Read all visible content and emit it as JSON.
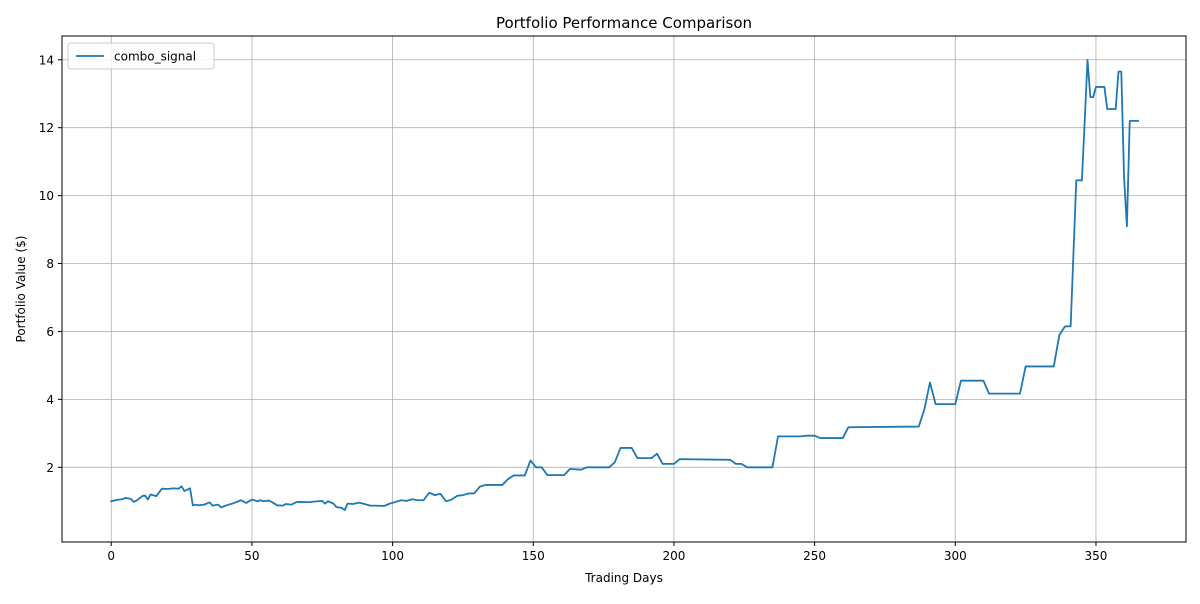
{
  "chart_data": {
    "type": "line",
    "title": "Portfolio Performance Comparison",
    "xlabel": "Trading Days",
    "ylabel": "Portfolio Value ($)",
    "xlim": [
      -17.5,
      382
    ],
    "ylim": [
      -0.2,
      14.7
    ],
    "xticks": [
      0,
      50,
      100,
      150,
      200,
      250,
      300,
      350
    ],
    "yticks": [
      2,
      4,
      6,
      8,
      10,
      12,
      14
    ],
    "grid": true,
    "legend_position": "top-left",
    "colors": {
      "series": "#1f77b4",
      "grid": "#b0b0b0",
      "axes": "#000000"
    },
    "series": [
      {
        "name": "combo_signal",
        "points": [
          [
            0,
            1.0
          ],
          [
            2,
            1.04
          ],
          [
            4,
            1.06
          ],
          [
            5,
            1.1
          ],
          [
            7,
            1.07
          ],
          [
            8,
            0.98
          ],
          [
            9,
            1.02
          ],
          [
            11,
            1.15
          ],
          [
            12,
            1.17
          ],
          [
            13,
            1.05
          ],
          [
            14,
            1.2
          ],
          [
            16,
            1.15
          ],
          [
            18,
            1.37
          ],
          [
            20,
            1.36
          ],
          [
            22,
            1.38
          ],
          [
            24,
            1.37
          ],
          [
            25,
            1.44
          ],
          [
            26,
            1.3
          ],
          [
            28,
            1.38
          ],
          [
            29,
            0.88
          ],
          [
            30,
            0.9
          ],
          [
            31,
            0.88
          ],
          [
            33,
            0.9
          ],
          [
            35,
            0.97
          ],
          [
            36,
            0.87
          ],
          [
            38,
            0.9
          ],
          [
            39,
            0.82
          ],
          [
            41,
            0.88
          ],
          [
            43,
            0.93
          ],
          [
            45,
            0.99
          ],
          [
            46,
            1.03
          ],
          [
            48,
            0.95
          ],
          [
            50,
            1.05
          ],
          [
            52,
            1.0
          ],
          [
            53,
            1.03
          ],
          [
            54,
            1.0
          ],
          [
            56,
            1.02
          ],
          [
            57,
            0.98
          ],
          [
            59,
            0.88
          ],
          [
            61,
            0.87
          ],
          [
            62,
            0.92
          ],
          [
            64,
            0.9
          ],
          [
            66,
            0.98
          ],
          [
            68,
            0.98
          ],
          [
            70,
            0.97
          ],
          [
            72,
            0.99
          ],
          [
            75,
            1.01
          ],
          [
            76,
            0.93
          ],
          [
            77,
            1.0
          ],
          [
            79,
            0.93
          ],
          [
            80,
            0.83
          ],
          [
            82,
            0.8
          ],
          [
            83,
            0.74
          ],
          [
            84,
            0.93
          ],
          [
            86,
            0.92
          ],
          [
            88,
            0.96
          ],
          [
            90,
            0.92
          ],
          [
            92,
            0.87
          ],
          [
            94,
            0.87
          ],
          [
            97,
            0.86
          ],
          [
            99,
            0.93
          ],
          [
            101,
            0.98
          ],
          [
            103,
            1.03
          ],
          [
            105,
            1.01
          ],
          [
            107,
            1.06
          ],
          [
            109,
            1.03
          ],
          [
            111,
            1.03
          ],
          [
            113,
            1.25
          ],
          [
            115,
            1.18
          ],
          [
            117,
            1.22
          ],
          [
            119,
            1.0
          ],
          [
            121,
            1.05
          ],
          [
            123,
            1.16
          ],
          [
            125,
            1.18
          ],
          [
            127,
            1.23
          ],
          [
            129,
            1.23
          ],
          [
            131,
            1.43
          ],
          [
            133,
            1.48
          ],
          [
            135,
            1.48
          ],
          [
            139,
            1.48
          ],
          [
            141,
            1.65
          ],
          [
            143,
            1.76
          ],
          [
            147,
            1.76
          ],
          [
            149,
            2.2
          ],
          [
            151,
            2.0
          ],
          [
            153,
            2.0
          ],
          [
            155,
            1.77
          ],
          [
            161,
            1.77
          ],
          [
            163,
            1.95
          ],
          [
            167,
            1.93
          ],
          [
            169,
            2.0
          ],
          [
            177,
            2.0
          ],
          [
            179,
            2.15
          ],
          [
            181,
            2.57
          ],
          [
            185,
            2.57
          ],
          [
            187,
            2.27
          ],
          [
            192,
            2.27
          ],
          [
            194,
            2.4
          ],
          [
            196,
            2.1
          ],
          [
            200,
            2.1
          ],
          [
            202,
            2.24
          ],
          [
            220,
            2.22
          ],
          [
            222,
            2.1
          ],
          [
            224,
            2.1
          ],
          [
            226,
            2.0
          ],
          [
            235,
            2.0
          ],
          [
            237,
            2.91
          ],
          [
            245,
            2.91
          ],
          [
            247,
            2.93
          ],
          [
            250,
            2.93
          ],
          [
            252,
            2.86
          ],
          [
            260,
            2.86
          ],
          [
            262,
            3.18
          ],
          [
            287,
            3.2
          ],
          [
            289,
            3.7
          ],
          [
            291,
            4.5
          ],
          [
            293,
            3.86
          ],
          [
            300,
            3.86
          ],
          [
            302,
            4.55
          ],
          [
            310,
            4.55
          ],
          [
            312,
            4.17
          ],
          [
            323,
            4.17
          ],
          [
            325,
            4.97
          ],
          [
            335,
            4.97
          ],
          [
            337,
            5.9
          ],
          [
            339,
            6.15
          ],
          [
            341,
            6.15
          ],
          [
            343,
            10.45
          ],
          [
            345,
            10.45
          ],
          [
            346,
            12.2
          ],
          [
            347,
            14.0
          ],
          [
            348,
            12.9
          ],
          [
            349,
            12.9
          ],
          [
            350,
            13.2
          ],
          [
            353,
            13.2
          ],
          [
            354,
            12.55
          ],
          [
            357,
            12.55
          ],
          [
            358,
            13.65
          ],
          [
            359,
            13.65
          ],
          [
            360,
            10.5
          ],
          [
            361,
            9.1
          ],
          [
            362,
            12.2
          ],
          [
            365,
            12.2
          ]
        ]
      }
    ]
  }
}
